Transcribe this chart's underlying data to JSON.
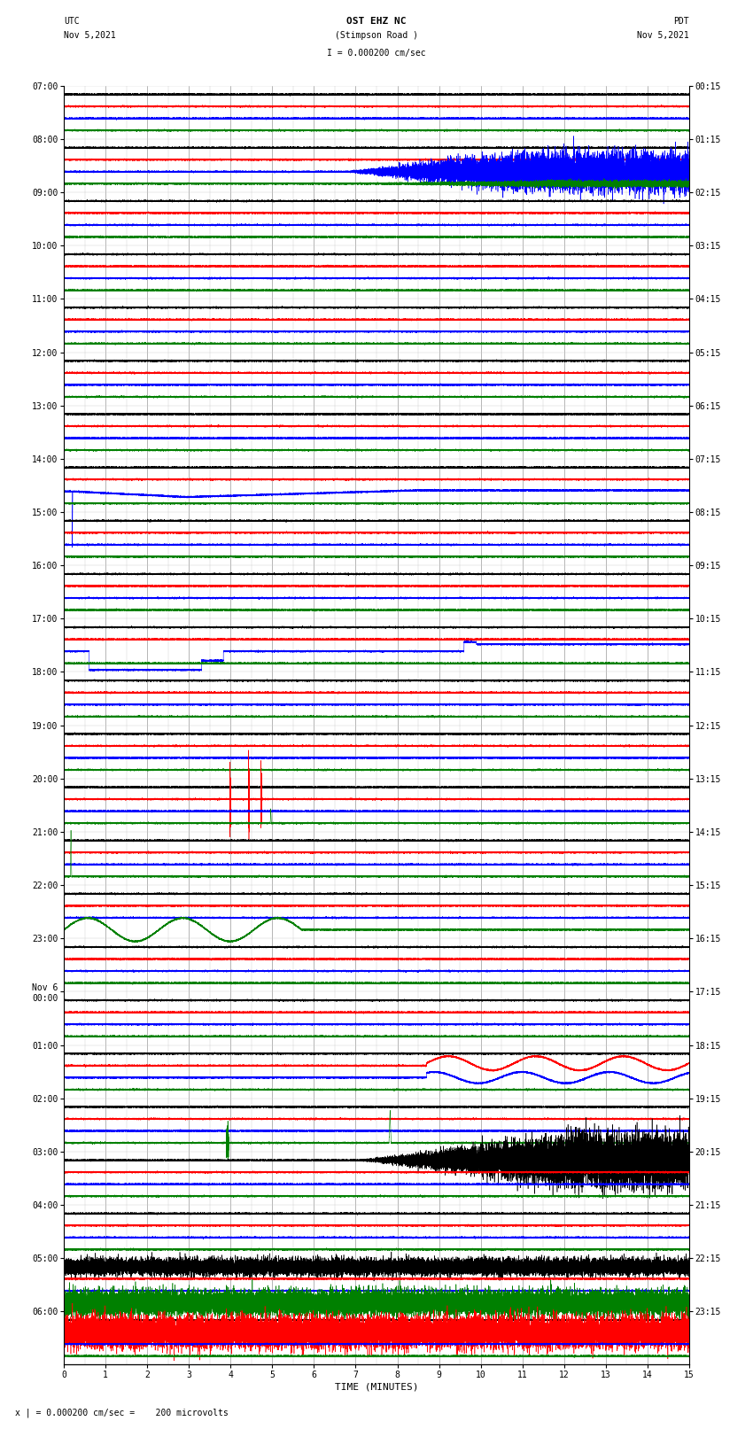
{
  "title_line1": "OST EHZ NC",
  "title_line2": "(Stimpson Road )",
  "scale_text": "I = 0.000200 cm/sec",
  "utc_label": "UTC",
  "utc_date": "Nov 5,2021",
  "pdt_label": "PDT",
  "pdt_date": "Nov 5,2021",
  "bottom_label": "x | = 0.000200 cm/sec =    200 microvolts",
  "xlabel": "TIME (MINUTES)",
  "left_times": [
    "07:00",
    "08:00",
    "09:00",
    "10:00",
    "11:00",
    "12:00",
    "13:00",
    "14:00",
    "15:00",
    "16:00",
    "17:00",
    "18:00",
    "19:00",
    "20:00",
    "21:00",
    "22:00",
    "23:00",
    "Nov 6\n00:00",
    "01:00",
    "02:00",
    "03:00",
    "04:00",
    "05:00",
    "06:00"
  ],
  "right_times": [
    "00:15",
    "01:15",
    "02:15",
    "03:15",
    "04:15",
    "05:15",
    "06:15",
    "07:15",
    "08:15",
    "09:15",
    "10:15",
    "11:15",
    "12:15",
    "13:15",
    "14:15",
    "15:15",
    "16:15",
    "17:15",
    "18:15",
    "19:15",
    "20:15",
    "21:15",
    "22:15",
    "23:15"
  ],
  "n_rows": 24,
  "n_traces_per_row": 4,
  "minutes": 15,
  "bg_color": "#ffffff",
  "colors": [
    "black",
    "red",
    "blue",
    "green"
  ],
  "line_width": 0.4,
  "grid_color": "#888888",
  "title_fontsize": 8,
  "label_fontsize": 7,
  "tick_fontsize": 7
}
